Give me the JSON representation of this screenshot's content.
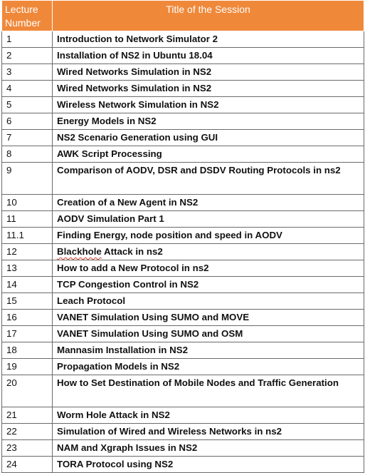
{
  "header": {
    "col1": "Lecture Number",
    "col2": "Title of the Session"
  },
  "rows": [
    {
      "num": "1",
      "title": "Introduction to Network Simulator 2"
    },
    {
      "num": "2",
      "title": "Installation of NS2 in Ubuntu 18.04"
    },
    {
      "num": "3",
      "title": "Wired Networks Simulation in NS2"
    },
    {
      "num": "4",
      "title": "Wired Networks Simulation in NS2"
    },
    {
      "num": "5",
      "title": "Wireless Network Simulation in NS2"
    },
    {
      "num": "6",
      "title": "Energy Models in NS2"
    },
    {
      "num": "7",
      "title": "NS2 Scenario Generation using GUI"
    },
    {
      "num": "8",
      "title": "AWK Script Processing"
    },
    {
      "num": "9",
      "title": "Comparison of AODV, DSR and DSDV Routing Protocols in ns2"
    },
    {
      "num": "10",
      "title": "Creation of a New Agent in NS2"
    },
    {
      "num": "11",
      "title": "AODV Simulation Part 1"
    },
    {
      "num": "11.1",
      "title": "Finding Energy, node position and speed in AODV"
    },
    {
      "num": "12",
      "title": "Blackhole Attack in ns2"
    },
    {
      "num": "13",
      "title": "How to add a New Protocol in ns2"
    },
    {
      "num": "14",
      "title": "TCP Congestion Control in NS2"
    },
    {
      "num": "15",
      "title": "Leach Protocol"
    },
    {
      "num": "16",
      "title": "VANET Simulation Using SUMO and MOVE"
    },
    {
      "num": "17",
      "title": "VANET Simulation Using SUMO and OSM"
    },
    {
      "num": "18",
      "title": "Mannasim Installation in NS2"
    },
    {
      "num": "19",
      "title": "Propagation Models in NS2"
    },
    {
      "num": "20",
      "title": "How to Set Destination of Mobile Nodes and Traffic Generation"
    },
    {
      "num": "21",
      "title": "Worm Hole Attack in NS2"
    },
    {
      "num": "22",
      "title": "Simulation of Wired and Wireless Networks in ns2"
    },
    {
      "num": "23",
      "title": "NAM and Xgraph Issues in NS2"
    },
    {
      "num": "24",
      "title": "TORA Protocol using NS2"
    }
  ],
  "colors": {
    "header_bg": "#f0883a",
    "header_text": "#ffffff",
    "border": "#6b6b6b"
  }
}
